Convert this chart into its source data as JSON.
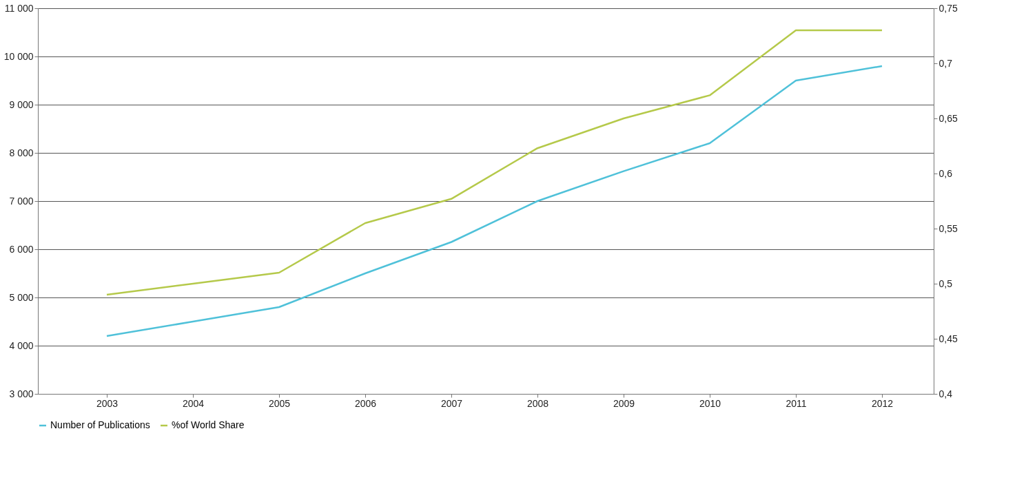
{
  "chart_data": {
    "type": "line",
    "categories": [
      "2003",
      "2004",
      "2005",
      "2006",
      "2007",
      "2008",
      "2009",
      "2010",
      "2011",
      "2012"
    ],
    "series": [
      {
        "name": "Number of Publications",
        "color": "#4fc1d9",
        "values": [
          4200,
          4500,
          4800,
          5500,
          6150,
          7000,
          7620,
          8200,
          9500,
          9800
        ]
      },
      {
        "name": "%of World Share",
        "color": "#b5c94a",
        "axis": "y2",
        "values": [
          0.49,
          0.5,
          0.51,
          0.555,
          0.577,
          0.623,
          0.65,
          0.671,
          0.73,
          0.73
        ]
      }
    ],
    "ylim": [
      3000,
      11000
    ],
    "yticks": [
      {
        "value": 3000,
        "label": "3 000"
      },
      {
        "value": 4000,
        "label": "4 000"
      },
      {
        "value": 5000,
        "label": "5 000"
      },
      {
        "value": 6000,
        "label": "6 000"
      },
      {
        "value": 7000,
        "label": "7 000"
      },
      {
        "value": 8000,
        "label": "8 000"
      },
      {
        "value": 9000,
        "label": "9 000"
      },
      {
        "value": 10000,
        "label": "10 000"
      },
      {
        "value": 11000,
        "label": "11 000"
      }
    ],
    "y2lim": [
      0.4,
      0.75
    ],
    "y2ticks": [
      {
        "value": 0.4,
        "label": "0,4"
      },
      {
        "value": 0.45,
        "label": "0,45"
      },
      {
        "value": 0.5,
        "label": "0,5"
      },
      {
        "value": 0.55,
        "label": "0,55"
      },
      {
        "value": 0.6,
        "label": "0,6"
      },
      {
        "value": 0.65,
        "label": "0,65"
      },
      {
        "value": 0.7,
        "label": "0,7"
      },
      {
        "value": 0.75,
        "label": "0,75"
      }
    ],
    "grid": "y",
    "legend": "bottom",
    "marker": "none",
    "line_style": "solid"
  }
}
